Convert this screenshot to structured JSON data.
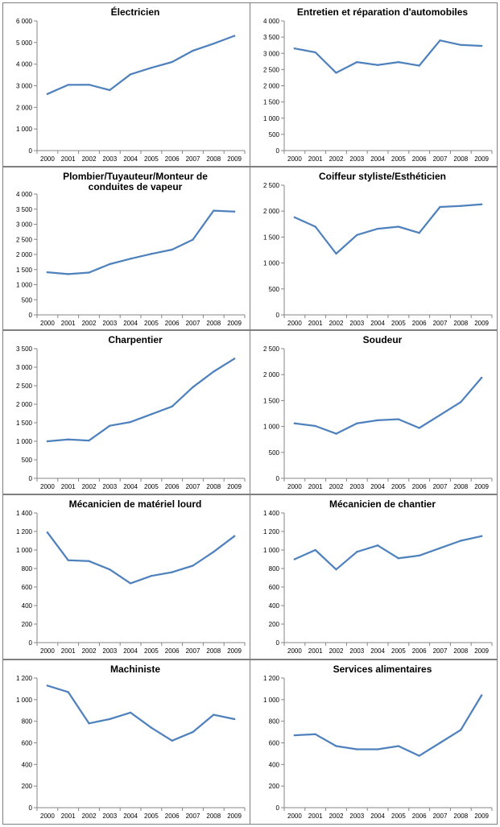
{
  "chart_data": [
    {
      "type": "line",
      "title": [
        "Électricien"
      ],
      "x": [
        "2000",
        "2001",
        "2002",
        "2003",
        "2004",
        "2005",
        "2006",
        "2007",
        "2008",
        "2009"
      ],
      "ylim": [
        0,
        6000
      ],
      "ytick_step": 1000,
      "yticks": [
        "0",
        "1 000",
        "2 000",
        "3 000",
        "4 000",
        "5 000",
        "6 000"
      ],
      "values": [
        2620,
        3040,
        3050,
        2800,
        3530,
        3830,
        4100,
        4620,
        4950,
        5310
      ],
      "grid": false
    },
    {
      "type": "line",
      "title": [
        "Entretien et réparation d'automobiles"
      ],
      "x": [
        "2000",
        "2001",
        "2002",
        "2003",
        "2004",
        "2005",
        "2006",
        "2007",
        "2008",
        "2009"
      ],
      "ylim": [
        0,
        4000
      ],
      "ytick_step": 500,
      "yticks": [
        "0",
        "500",
        "1 000",
        "1 500",
        "2 000",
        "2 500",
        "3 000",
        "3 500",
        "4 000"
      ],
      "values": [
        3150,
        3030,
        2400,
        2730,
        2640,
        2730,
        2620,
        3400,
        3260,
        3230
      ],
      "grid": false
    },
    {
      "type": "line",
      "title": [
        "Plombier/Tuyauteur/Monteur de",
        "conduites de vapeur"
      ],
      "x": [
        "2000",
        "2001",
        "2002",
        "2003",
        "2004",
        "2005",
        "2006",
        "2007",
        "2008",
        "2009"
      ],
      "ylim": [
        0,
        4000
      ],
      "ytick_step": 500,
      "yticks": [
        "0",
        "500",
        "1 000",
        "1 500",
        "2 000",
        "2 500",
        "3 000",
        "3 500",
        "4 000"
      ],
      "values": [
        1410,
        1350,
        1400,
        1680,
        1860,
        2020,
        2160,
        2490,
        3450,
        3420
      ],
      "grid": false
    },
    {
      "type": "line",
      "title": [
        "Coiffeur styliste/Esthéticien"
      ],
      "x": [
        "2000",
        "2001",
        "2002",
        "2003",
        "2004",
        "2005",
        "2006",
        "2007",
        "2008",
        "2009"
      ],
      "ylim": [
        0,
        2500
      ],
      "ytick_step": 500,
      "yticks": [
        "0",
        "500",
        "1 000",
        "1 500",
        "2 000",
        "2 500"
      ],
      "values": [
        1880,
        1700,
        1180,
        1540,
        1660,
        1700,
        1580,
        2080,
        2100,
        2130
      ],
      "grid": false
    },
    {
      "type": "line",
      "title": [
        "Charpentier"
      ],
      "x": [
        "2000",
        "2001",
        "2002",
        "2003",
        "2004",
        "2005",
        "2006",
        "2007",
        "2008",
        "2009"
      ],
      "ylim": [
        0,
        3500
      ],
      "ytick_step": 500,
      "yticks": [
        "0",
        "500",
        "1 000",
        "1 500",
        "2 000",
        "2 500",
        "3 000",
        "3 500"
      ],
      "values": [
        1000,
        1050,
        1020,
        1420,
        1520,
        1730,
        1940,
        2460,
        2880,
        3230
      ],
      "grid": false
    },
    {
      "type": "line",
      "title": [
        "Soudeur"
      ],
      "x": [
        "2000",
        "2001",
        "2002",
        "2003",
        "2004",
        "2005",
        "2006",
        "2007",
        "2008",
        "2009"
      ],
      "ylim": [
        0,
        2500
      ],
      "ytick_step": 500,
      "yticks": [
        "0",
        "500",
        "1 000",
        "1 500",
        "2 000",
        "2 500"
      ],
      "values": [
        1060,
        1010,
        860,
        1060,
        1120,
        1140,
        970,
        1220,
        1470,
        1940
      ],
      "grid": false
    },
    {
      "type": "line",
      "title": [
        "Mécanicien de matériel lourd"
      ],
      "x": [
        "2000",
        "2001",
        "2002",
        "2003",
        "2004",
        "2005",
        "2006",
        "2007",
        "2008",
        "2009"
      ],
      "ylim": [
        0,
        1400
      ],
      "ytick_step": 200,
      "yticks": [
        "0",
        "200",
        "400",
        "600",
        "800",
        "1 000",
        "1 200",
        "1 400"
      ],
      "values": [
        1190,
        890,
        880,
        790,
        640,
        720,
        760,
        830,
        980,
        1150
      ],
      "grid": false
    },
    {
      "type": "line",
      "title": [
        "Mécanicien de chantier"
      ],
      "x": [
        "2000",
        "2001",
        "2002",
        "2003",
        "2004",
        "2005",
        "2006",
        "2007",
        "2008",
        "2009"
      ],
      "ylim": [
        0,
        1400
      ],
      "ytick_step": 200,
      "yticks": [
        "0",
        "200",
        "400",
        "600",
        "800",
        "1 000",
        "1 200",
        "1 400"
      ],
      "values": [
        900,
        1000,
        790,
        980,
        1050,
        910,
        940,
        1020,
        1100,
        1150
      ],
      "grid": false
    },
    {
      "type": "line",
      "title": [
        "Machiniste"
      ],
      "x": [
        "2000",
        "2001",
        "2002",
        "2003",
        "2004",
        "2005",
        "2006",
        "2007",
        "2008",
        "2009"
      ],
      "ylim": [
        0,
        1200
      ],
      "ytick_step": 200,
      "yticks": [
        "0",
        "200",
        "400",
        "600",
        "800",
        "1 000",
        "1 200"
      ],
      "values": [
        1130,
        1070,
        780,
        820,
        880,
        740,
        620,
        700,
        860,
        820
      ],
      "grid": false
    },
    {
      "type": "line",
      "title": [
        "Services alimentaires"
      ],
      "x": [
        "2000",
        "2001",
        "2002",
        "2003",
        "2004",
        "2005",
        "2006",
        "2007",
        "2008",
        "2009"
      ],
      "ylim": [
        0,
        1200
      ],
      "ytick_step": 200,
      "yticks": [
        "0",
        "200",
        "400",
        "600",
        "800",
        "1 000",
        "1 200"
      ],
      "values": [
        670,
        680,
        570,
        540,
        540,
        570,
        480,
        600,
        720,
        1040
      ],
      "grid": false
    }
  ],
  "colors": {
    "series": "#4f81bd",
    "axis": "#868686",
    "border": "#7f7f7f"
  }
}
